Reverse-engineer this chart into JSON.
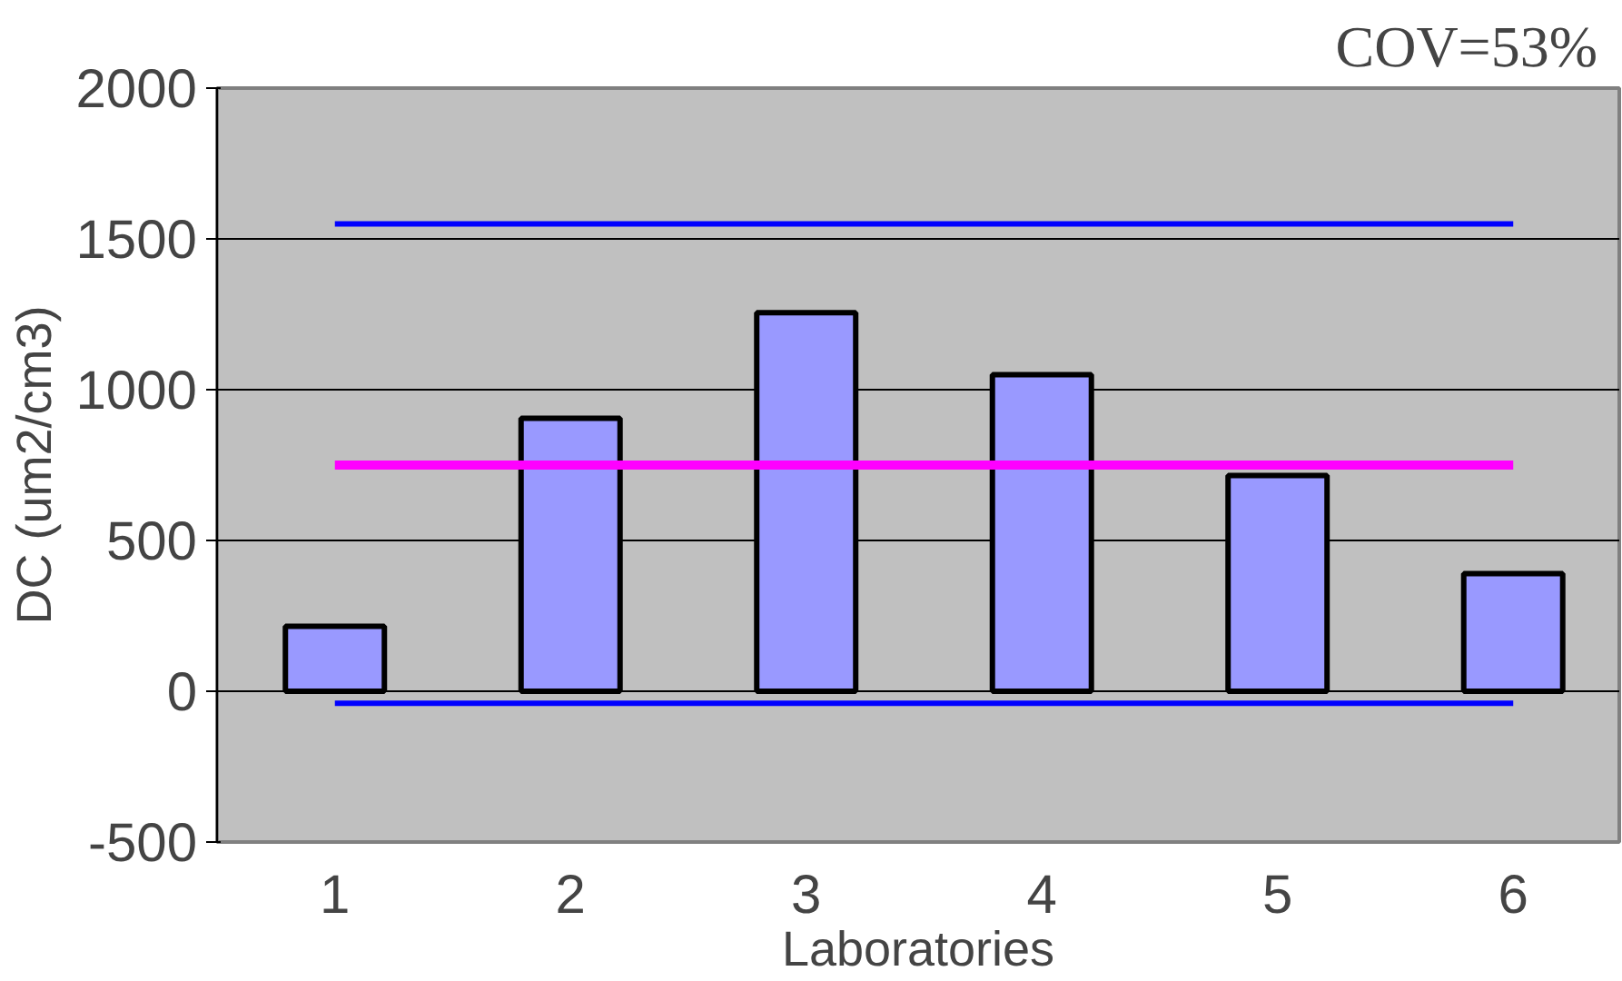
{
  "chart_data": {
    "type": "bar",
    "categories": [
      "1",
      "2",
      "3",
      "4",
      "5",
      "6"
    ],
    "values": [
      215,
      905,
      1255,
      1050,
      715,
      390
    ],
    "color": "#9999ff",
    "xlabel": "Laboratories",
    "ylabel": "DC (um2/cm3)",
    "ylim": [
      -500,
      2000
    ],
    "yticks": [
      -500,
      0,
      500,
      1000,
      1500,
      2000
    ],
    "grid": "y",
    "ref_lines": [
      {
        "axis": "y",
        "value": 1550,
        "color": "#0000ff"
      },
      {
        "axis": "y",
        "value": 750,
        "color": "#ff00ff"
      },
      {
        "axis": "y",
        "value": -40,
        "color": "#0000ff"
      }
    ],
    "annotations": [
      "COV=53%"
    ]
  }
}
